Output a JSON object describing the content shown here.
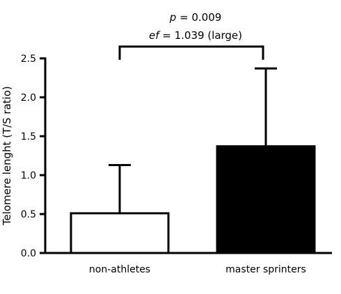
{
  "chart_data": {
    "type": "bar",
    "categories": [
      "non-athletes",
      "master sprinters"
    ],
    "values": [
      0.51,
      1.37
    ],
    "error_upper": [
      1.13,
      2.37
    ],
    "bar_fills": [
      "#ffffff",
      "#000000"
    ],
    "ylabel": "Telomere lenght (T/S ratio)",
    "ylim": [
      0,
      2.5
    ],
    "yticks": [
      0,
      0.5,
      1.0,
      1.5,
      2.0,
      2.5
    ],
    "ytick_labels": [
      "0.0",
      "0.5",
      "1.0",
      "1.5",
      "2.0",
      "2.5"
    ],
    "grid": false,
    "annotation": {
      "line1_italic": "p",
      "line1_rest": " = 0.009",
      "line2_italic": "ef",
      "line2_rest": " = 1.039 (large)"
    }
  }
}
